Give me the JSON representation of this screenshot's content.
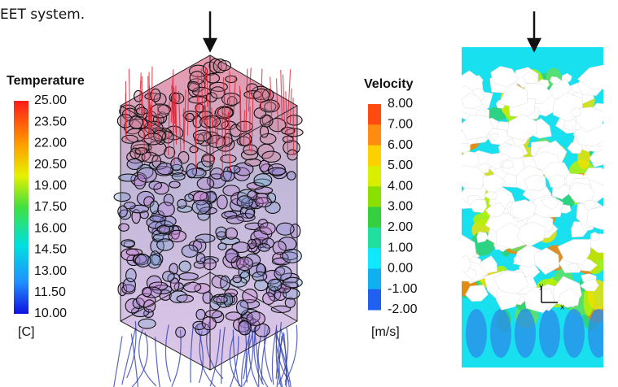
{
  "caption_fragment": "EET system.",
  "temperature_legend": {
    "title": "Temperature",
    "labels": [
      "25.00",
      "23.50",
      "22.00",
      "20.50",
      "19.00",
      "17.50",
      "16.00",
      "14.50",
      "13.00",
      "11.50",
      "10.00"
    ],
    "unit": "[C]"
  },
  "velocity_legend": {
    "title": "Velocity",
    "labels": [
      "8.00",
      "7.00",
      "6.00",
      "5.00",
      "4.00",
      "3.00",
      "2.00",
      "1.00",
      "0.00",
      "-1.00",
      "-2.00"
    ],
    "unit": "[m/s]"
  },
  "axis_triad": {
    "y": "y",
    "x": "x"
  }
}
